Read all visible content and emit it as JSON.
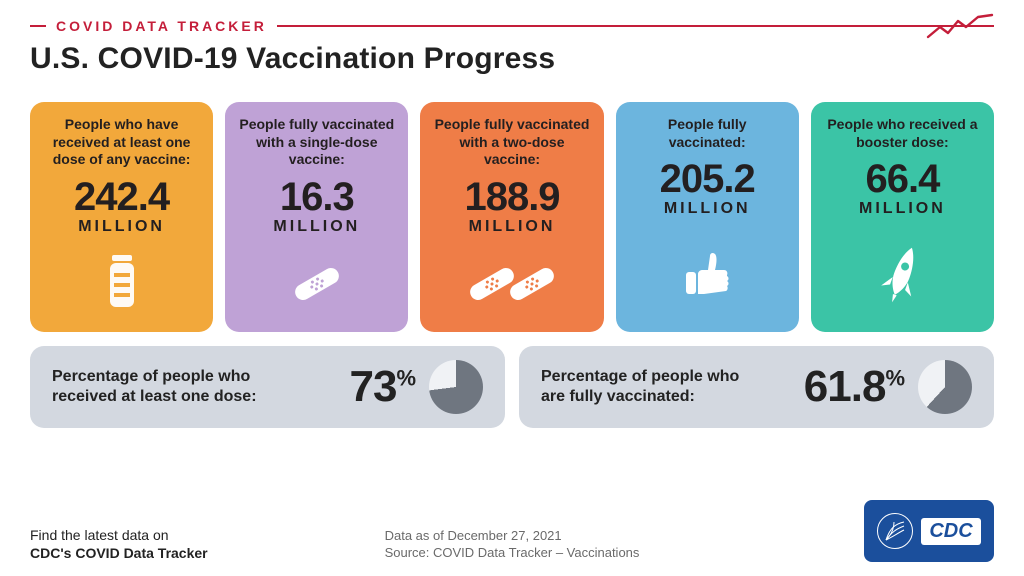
{
  "header": {
    "kicker": "COVID DATA TRACKER",
    "kicker_color": "#c41e3a",
    "title": "U.S. COVID-19 Vaccination Progress",
    "sparkline_color": "#c41e3a"
  },
  "cards": [
    {
      "label": "People who have received at least one dose of any vaccine:",
      "value": "242.4",
      "unit": "MILLION",
      "bg": "#f2a83b",
      "text": "#231f20",
      "icon": "vial"
    },
    {
      "label": "People fully vaccinated with a single-dose vaccine:",
      "value": "16.3",
      "unit": "MILLION",
      "bg": "#bfa2d6",
      "text": "#231f20",
      "icon": "bandaid1"
    },
    {
      "label": "People fully vaccinated with a two-dose vaccine:",
      "value": "188.9",
      "unit": "MILLION",
      "bg": "#ef7d47",
      "text": "#231f20",
      "icon": "bandaid2"
    },
    {
      "label": "People fully vaccinated:",
      "value": "205.2",
      "unit": "MILLION",
      "bg": "#6cb5de",
      "text": "#231f20",
      "icon": "thumb"
    },
    {
      "label": "People who received a booster dose:",
      "value": "66.4",
      "unit": "MILLION",
      "bg": "#3bc4a6",
      "text": "#231f20",
      "icon": "rocket"
    }
  ],
  "percent_row": {
    "bg": "#d3d8e0",
    "pie_track": "#f0f2f5",
    "pie_fill": "#6f7680",
    "items": [
      {
        "label": "Percentage of people who received at least one dose:",
        "value_text": "73",
        "pct": 73
      },
      {
        "label": "Percentage of people who are fully vaccinated:",
        "value_text": "61.8",
        "pct": 61.8
      }
    ]
  },
  "footer": {
    "left_line1": "Find the latest data on",
    "left_line2": "CDC's COVID Data Tracker",
    "date_line": "Data as of December 27, 2021",
    "source_line": "Source: COVID Data Tracker – Vaccinations",
    "logo_bg": "#1b4f9c",
    "logo_text": "CDC"
  }
}
